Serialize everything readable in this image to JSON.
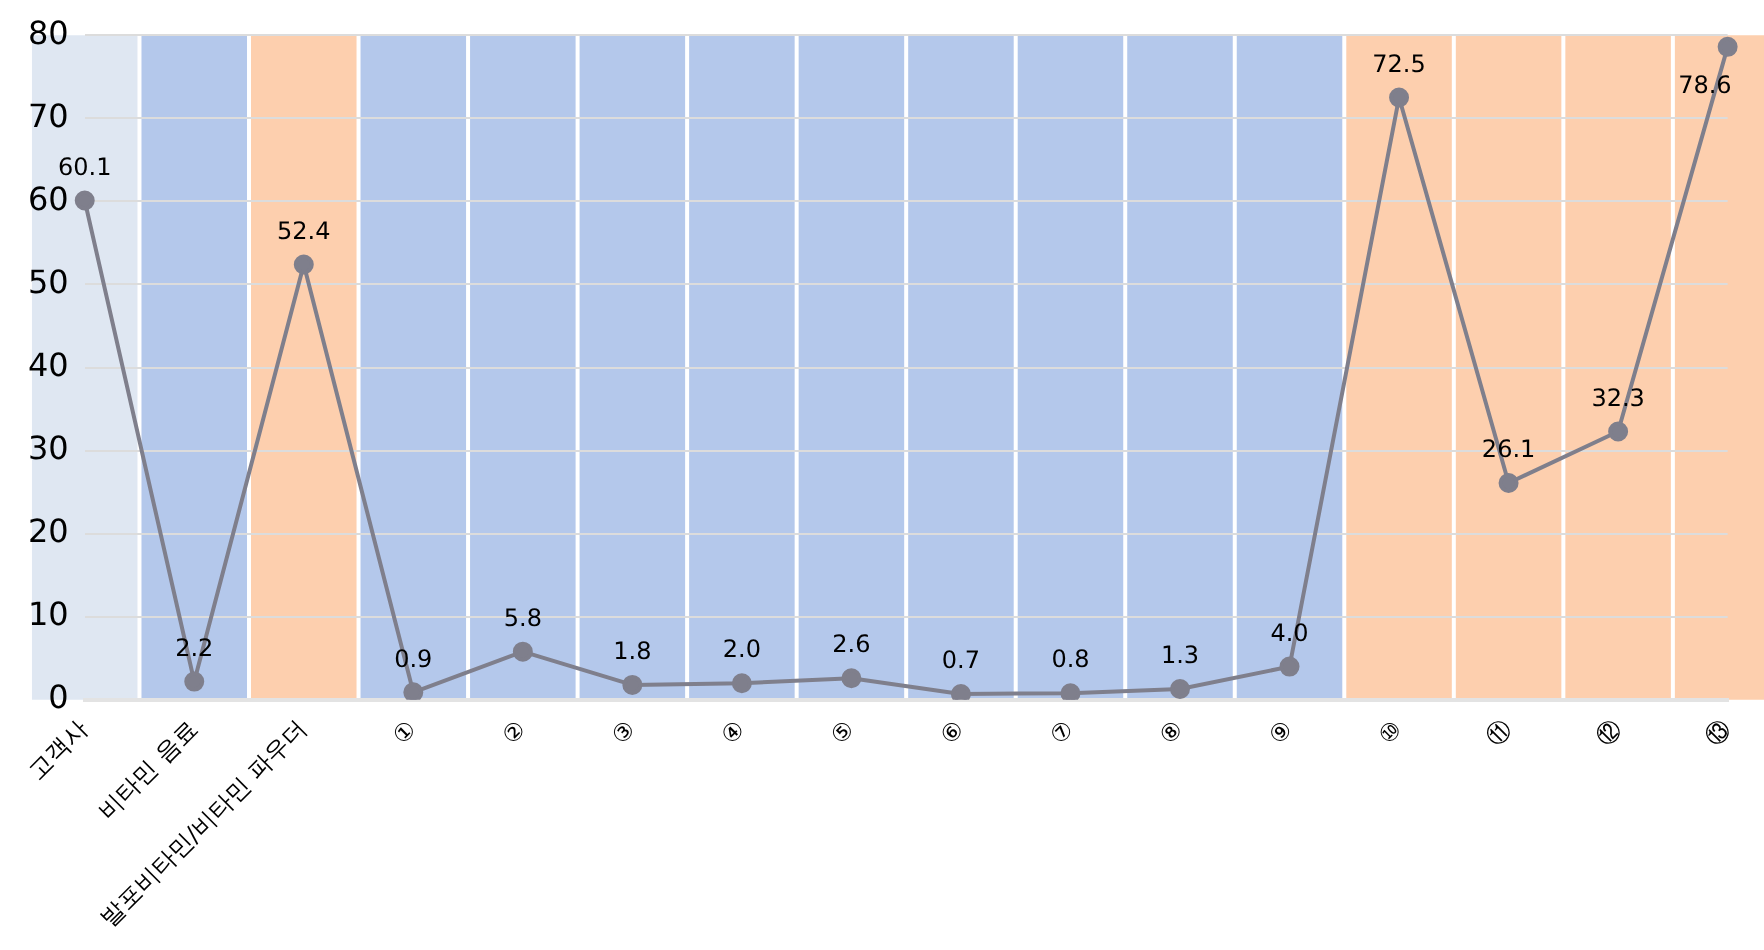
{
  "chart_data": {
    "type": "line",
    "categories": [
      "고객사",
      "비타민 음료",
      "발포비타민/비타민 파우더",
      "①",
      "②",
      "③",
      "④",
      "⑤",
      "⑥",
      "⑦",
      "⑧",
      "⑨",
      "⑩",
      "⑪",
      "⑫",
      "⑬"
    ],
    "series": [
      {
        "color": "#7f7f8c",
        "values": [
          60.1,
          2.2,
          52.4,
          0.9,
          5.8,
          1.8,
          2.0,
          2.6,
          0.7,
          0.8,
          1.3,
          4.0,
          72.5,
          26.1,
          32.3,
          78.6
        ],
        "value_labels": [
          "60.1",
          "2.2",
          "52.4",
          "0.9",
          "5.8",
          "1.8",
          "2.0",
          "2.6",
          "0.7",
          "0.8",
          "1.3",
          "4.0",
          "72.5",
          "26.1",
          "32.3",
          "78.6"
        ]
      }
    ],
    "ylim": [
      0,
      80
    ],
    "yticks": [
      0,
      10,
      20,
      30,
      40,
      50,
      60,
      70,
      80
    ],
    "grid": "y",
    "legend": false,
    "marker": "circle",
    "line_style": "solid",
    "bands": [
      {
        "axis": "x",
        "from": "고객사",
        "to": "고객사",
        "color": "#dfe7f2"
      },
      {
        "axis": "x",
        "from": "비타민 음료",
        "to": "비타민 음료",
        "color": "#b4c8eb"
      },
      {
        "axis": "x",
        "from": "발포비타민/비타민 파우더",
        "to": "발포비타민/비타민 파우더",
        "color": "#fdcfae"
      },
      {
        "axis": "x",
        "from": "①",
        "to": "①",
        "color": "#b4c8eb"
      },
      {
        "axis": "x",
        "from": "②",
        "to": "②",
        "color": "#b4c8eb"
      },
      {
        "axis": "x",
        "from": "③",
        "to": "③",
        "color": "#b4c8eb"
      },
      {
        "axis": "x",
        "from": "④",
        "to": "④",
        "color": "#b4c8eb"
      },
      {
        "axis": "x",
        "from": "⑤",
        "to": "⑤",
        "color": "#b4c8eb"
      },
      {
        "axis": "x",
        "from": "⑥",
        "to": "⑥",
        "color": "#b4c8eb"
      },
      {
        "axis": "x",
        "from": "⑦",
        "to": "⑦",
        "color": "#b4c8eb"
      },
      {
        "axis": "x",
        "from": "⑧",
        "to": "⑧",
        "color": "#b4c8eb"
      },
      {
        "axis": "x",
        "from": "⑨",
        "to": "⑨",
        "color": "#b4c8eb"
      },
      {
        "axis": "x",
        "from": "⑩",
        "to": "⑩",
        "color": "#fdcfae"
      },
      {
        "axis": "x",
        "from": "⑪",
        "to": "⑪",
        "color": "#fdcfae"
      },
      {
        "axis": "x",
        "from": "⑫",
        "to": "⑫",
        "color": "#fdcfae"
      },
      {
        "axis": "x",
        "from": "⑬",
        "to": "⑬",
        "color": "#fdcfae"
      }
    ]
  }
}
